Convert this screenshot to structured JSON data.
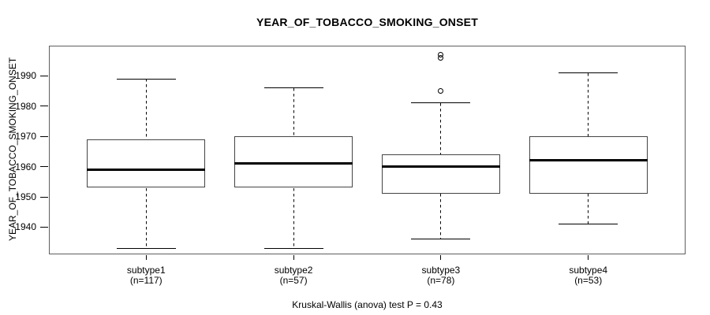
{
  "chart_data": {
    "type": "boxplot",
    "title": "YEAR_OF_TOBACCO_SMOKING_ONSET",
    "ylabel": "YEAR_OF_TOBACCO_SMOKING_ONSET",
    "xlabel": "",
    "annotation": "Kruskal-Wallis (anova) test P = 0.43",
    "ylim": [
      1931,
      2000
    ],
    "yticks": [
      1940,
      1950,
      1960,
      1970,
      1980,
      1990
    ],
    "grid": false,
    "legend": null,
    "categories": [
      "subtype1",
      "subtype2",
      "subtype3",
      "subtype4"
    ],
    "series": [
      {
        "name": "subtype1",
        "count_label": "(n=117)",
        "n": 117,
        "whisker_low": 1933,
        "q1": 1953,
        "median": 1959,
        "q3": 1969,
        "whisker_high": 1989,
        "outliers": []
      },
      {
        "name": "subtype2",
        "count_label": "(n=57)",
        "n": 57,
        "whisker_low": 1933,
        "q1": 1953,
        "median": 1961,
        "q3": 1970,
        "whisker_high": 1986,
        "outliers": []
      },
      {
        "name": "subtype3",
        "count_label": "(n=78)",
        "n": 78,
        "whisker_low": 1936,
        "q1": 1951,
        "median": 1960,
        "q3": 1964,
        "whisker_high": 1981,
        "outliers": [
          1985,
          1996,
          1997
        ]
      },
      {
        "name": "subtype4",
        "count_label": "(n=53)",
        "n": 53,
        "whisker_low": 1941,
        "q1": 1951,
        "median": 1962,
        "q3": 1970,
        "whisker_high": 1991,
        "outliers": []
      }
    ],
    "colors": {
      "background": "#ffffff",
      "line": "#000000",
      "box_border": "#444444",
      "frame": "#5e5e5e"
    }
  }
}
